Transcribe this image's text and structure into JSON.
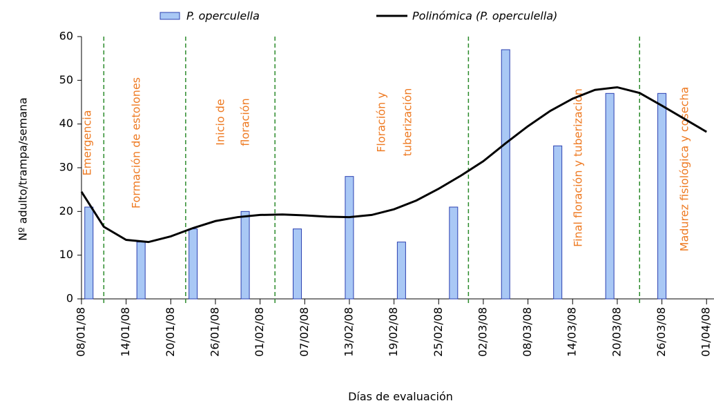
{
  "chart_data": {
    "type": "bar-line",
    "x_label": "Días de evaluación",
    "y_label": "Nº adulto/trampa/semana",
    "xlim": [
      "08/01/08",
      "02/04/08"
    ],
    "xticks": [
      "08/01/08",
      "14/01/08",
      "20/01/08",
      "26/01/08",
      "01/02/08",
      "07/02/08",
      "13/02/08",
      "19/02/08",
      "25/02/08",
      "02/03/08",
      "08/03/08",
      "14/03/08",
      "20/03/08",
      "26/03/08",
      "01/04/08"
    ],
    "ylim": [
      0,
      60
    ],
    "yticks": [
      0,
      10,
      20,
      30,
      40,
      50,
      60
    ],
    "series": [
      {
        "name": "P. operculella",
        "type": "bar",
        "color": "#a9c8f5",
        "x": [
          "09/01/08",
          "16/01/08",
          "23/01/08",
          "30/01/08",
          "06/02/08",
          "13/02/08",
          "20/02/08",
          "27/02/08",
          "05/03/08",
          "12/03/08",
          "19/03/08",
          "26/03/08"
        ],
        "values": [
          21,
          13,
          16,
          20,
          16,
          28,
          13,
          21,
          57,
          35,
          47,
          47
        ]
      },
      {
        "name": "Polinómica (P. operculella)",
        "type": "line",
        "color": "#000000",
        "x": [
          "08/01/08",
          "11/01/08",
          "14/01/08",
          "17/01/08",
          "20/01/08",
          "23/01/08",
          "26/01/08",
          "29/01/08",
          "01/02/08",
          "04/02/08",
          "07/02/08",
          "10/02/08",
          "13/02/08",
          "16/02/08",
          "19/02/08",
          "22/02/08",
          "25/02/08",
          "28/02/08",
          "02/03/08",
          "05/03/08",
          "08/03/08",
          "11/03/08",
          "14/03/08",
          "17/03/08",
          "20/03/08",
          "23/03/08",
          "26/03/08",
          "29/03/08",
          "01/04/08"
        ],
        "values": [
          24.5,
          16.5,
          13.5,
          13.0,
          14.3,
          16.2,
          17.8,
          18.7,
          19.2,
          19.3,
          19.1,
          18.8,
          18.7,
          19.2,
          20.5,
          22.5,
          25.2,
          28.2,
          31.5,
          35.6,
          39.5,
          43.0,
          45.8,
          47.8,
          48.4,
          47.1,
          44.2,
          41.2,
          38.2
        ]
      }
    ],
    "phase_lines": {
      "color": "#2a8a2a",
      "x": [
        "11/01/08",
        "22/01/08",
        "03/02/08",
        "29/02/08",
        "23/03/08"
      ]
    },
    "annotations": [
      {
        "lines": [
          "Emergencia"
        ]
      },
      {
        "lines": [
          "Formación de estolones"
        ]
      },
      {
        "lines": [
          "Inicio de",
          "floración"
        ]
      },
      {
        "lines": [
          "Floración y",
          "tuberización"
        ]
      },
      {
        "lines": [
          "Final floración y tuberización"
        ]
      },
      {
        "lines": [
          "Madurez fisiológica y cosecha"
        ]
      }
    ],
    "annotation_color": "#ee7a22"
  }
}
